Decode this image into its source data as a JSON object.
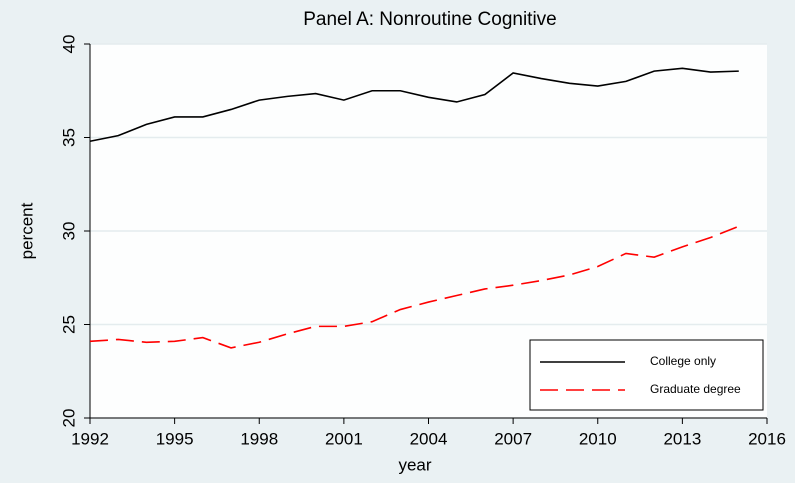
{
  "chart_data": {
    "type": "line",
    "title": "Panel A:  Nonroutine Cognitive",
    "x_label": "year",
    "y_label": "percent",
    "x": [
      1992,
      1993,
      1994,
      1995,
      1996,
      1997,
      1998,
      1999,
      2000,
      2001,
      2002,
      2003,
      2004,
      2005,
      2006,
      2007,
      2008,
      2009,
      2010,
      2011,
      2012,
      2013,
      2014,
      2015
    ],
    "series": [
      {
        "name": "College only",
        "color": "#000000",
        "dash": "solid",
        "values": [
          34.8,
          35.1,
          35.7,
          36.1,
          36.1,
          36.5,
          37.0,
          37.2,
          37.35,
          37.0,
          37.5,
          37.5,
          37.15,
          36.9,
          37.3,
          38.45,
          38.15,
          37.9,
          37.75,
          38.0,
          38.55,
          38.7,
          38.5,
          38.55
        ]
      },
      {
        "name": "Graduate degree",
        "color": "#ff0000",
        "dash": "dashed",
        "values": [
          24.1,
          24.2,
          24.05,
          24.1,
          24.3,
          23.75,
          24.05,
          24.5,
          24.9,
          24.9,
          25.15,
          25.8,
          26.2,
          26.55,
          26.9,
          27.1,
          27.35,
          27.65,
          28.1,
          28.8,
          28.6,
          29.15,
          29.65,
          30.25
        ]
      }
    ],
    "xlim": [
      1992,
      2016
    ],
    "xticks": [
      1992,
      1995,
      1998,
      2001,
      2004,
      2007,
      2010,
      2013,
      2016
    ],
    "ylim": [
      20,
      40
    ],
    "yticks": [
      20,
      25,
      30,
      35,
      40
    ],
    "grid": true,
    "legend_position": "lower right"
  }
}
